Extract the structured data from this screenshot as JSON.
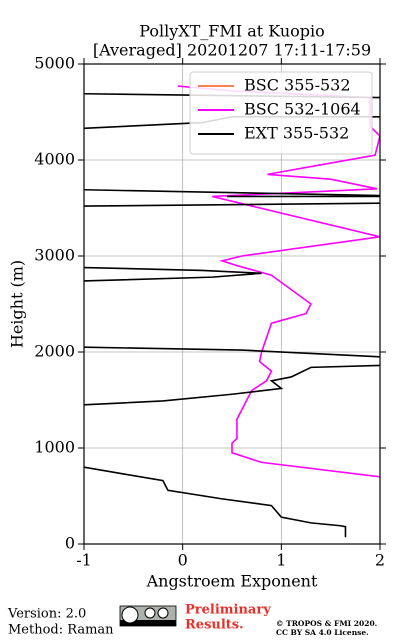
{
  "chart_data": {
    "type": "line",
    "title": "PollyXT_FMI at Kuopio",
    "subtitle": "[Averaged] 20201207 17:11-17:59",
    "x_label": "Angstroem Exponent",
    "y_label": "Height (m)",
    "xlim": [
      -1,
      2
    ],
    "ylim": [
      0,
      5000
    ],
    "xticks": [
      -1,
      0,
      1,
      2
    ],
    "yticks": [
      0,
      1000,
      2000,
      3000,
      4000,
      5000
    ],
    "grid": true,
    "legend": "upper right",
    "series": [
      {
        "name": "BSC 355-532",
        "color": "#ff7f50",
        "x": [],
        "y": []
      },
      {
        "name": "BSC 532-1064",
        "color": "#ff00ff",
        "x": [
          -0.05,
          0.5,
          1.9,
          1.9,
          2.0,
          1.95,
          1.4,
          0.86,
          1.5,
          1.97,
          0.3,
          2.0,
          0.6,
          0.4,
          0.55,
          0.9,
          1.1,
          1.3,
          1.25,
          0.9,
          0.85,
          0.8,
          0.78,
          0.9,
          0.85,
          0.7,
          0.6,
          0.55,
          0.55,
          0.5,
          0.5,
          0.8,
          2.0
        ],
        "y": [
          4770,
          4720,
          4650,
          4350,
          4250,
          4050,
          3950,
          3850,
          3800,
          3700,
          3620,
          3200,
          3000,
          2950,
          2900,
          2800,
          2650,
          2500,
          2400,
          2300,
          2150,
          2000,
          1900,
          1800,
          1700,
          1600,
          1400,
          1300,
          1100,
          1050,
          950,
          850,
          700
        ]
      },
      {
        "name": "EXT 355-532",
        "color": "#000000",
        "x": [
          -1,
          2,
          null,
          -1,
          -0.4,
          0.2,
          0.5,
          2,
          null,
          -1,
          2,
          null,
          0.45,
          2,
          null,
          -1,
          2,
          null,
          -1,
          0.2,
          0.8,
          0.3,
          -1,
          null,
          -1,
          0.6,
          2,
          null,
          2,
          1.3,
          1.1,
          0.9,
          1.0,
          0.5,
          -0.2,
          -1,
          null,
          -1,
          -0.6,
          -0.2,
          -0.15,
          0.4,
          0.9,
          1.0,
          1.3,
          1.6,
          1.65,
          1.65
        ],
        "y": [
          4690,
          4650,
          null,
          4330,
          4360,
          4390,
          4450,
          4450,
          null,
          3690,
          3630,
          null,
          3620,
          3620,
          null,
          3520,
          3550,
          null,
          2880,
          2850,
          2820,
          2780,
          2740,
          null,
          2050,
          2020,
          1950,
          null,
          1860,
          1840,
          1740,
          1700,
          1620,
          1560,
          1490,
          1450,
          null,
          800,
          730,
          660,
          560,
          470,
          400,
          280,
          220,
          190,
          180,
          70
        ]
      }
    ]
  },
  "footer": {
    "version": "Version: 2.0",
    "method": "Method: Raman",
    "notice": [
      "Preliminary",
      "Results."
    ],
    "copyright": [
      "© TROPOS & FMI 2020.",
      "CC BY SA 4.0 License."
    ]
  }
}
